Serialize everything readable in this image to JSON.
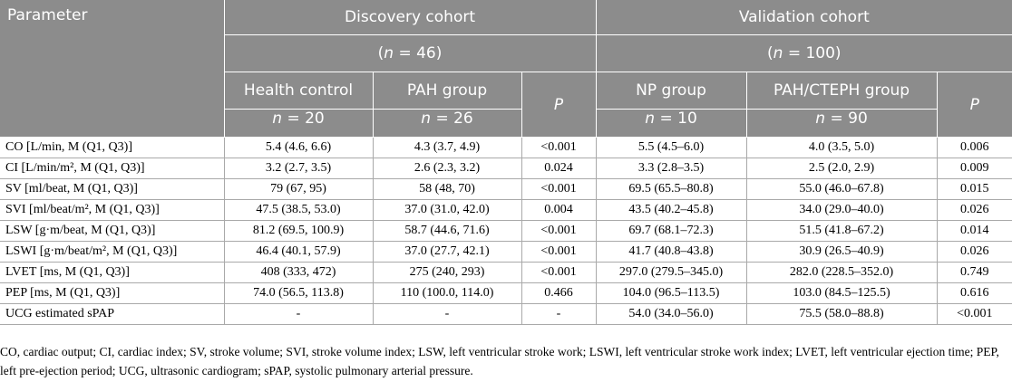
{
  "header": {
    "parameter": "Parameter",
    "discovery": "Discovery cohort",
    "discovery_n": "(n = 46)",
    "validation": "Validation cohort",
    "validation_n": "(n = 100)",
    "health_control": "Health control",
    "pah_group": "PAH group",
    "p": "P",
    "np_group": "NP group",
    "pah_cteph_group": "PAH/CTEPH group",
    "hc_n": "n = 20",
    "pah_n": "n = 26",
    "np_n": "n = 10",
    "pahcteph_n": "n = 90"
  },
  "rows": [
    {
      "param": "CO [L/min, M (Q1, Q3)]",
      "hc": "5.4 (4.6, 6.6)",
      "pah": "4.3 (3.7, 4.9)",
      "p1": "<0.001",
      "np": "5.5 (4.5–6.0)",
      "pahcteph": "4.0 (3.5, 5.0)",
      "p2": "0.006"
    },
    {
      "param": "CI [L/min/m², M (Q1, Q3)]",
      "hc": "3.2 (2.7, 3.5)",
      "pah": "2.6 (2.3, 3.2)",
      "p1": "0.024",
      "np": "3.3 (2.8–3.5)",
      "pahcteph": "2.5 (2.0, 2.9)",
      "p2": "0.009"
    },
    {
      "param": "SV [ml/beat, M (Q1, Q3)]",
      "hc": "79 (67, 95)",
      "pah": "58 (48, 70)",
      "p1": "<0.001",
      "np": "69.5 (65.5–80.8)",
      "pahcteph": "55.0 (46.0–67.8)",
      "p2": "0.015"
    },
    {
      "param": "SVI [ml/beat/m², M (Q1, Q3)]",
      "hc": "47.5 (38.5, 53.0)",
      "pah": "37.0 (31.0, 42.0)",
      "p1": "0.004",
      "np": "43.5 (40.2–45.8)",
      "pahcteph": "34.0 (29.0–40.0)",
      "p2": "0.026"
    },
    {
      "param": "LSW [g·m/beat, M (Q1, Q3)]",
      "hc": "81.2 (69.5, 100.9)",
      "pah": "58.7 (44.6, 71.6)",
      "p1": "<0.001",
      "np": "69.7 (68.1–72.3)",
      "pahcteph": "51.5 (41.8–67.2)",
      "p2": "0.014"
    },
    {
      "param": "LSWI [g·m/beat/m², M (Q1, Q3)]",
      "hc": "46.4 (40.1, 57.9)",
      "pah": "37.0 (27.7, 42.1)",
      "p1": "<0.001",
      "np": "41.7 (40.8–43.8)",
      "pahcteph": "30.9 (26.5–40.9)",
      "p2": "0.026"
    },
    {
      "param": "LVET [ms, M (Q1, Q3)]",
      "hc": "408 (333, 472)",
      "pah": "275 (240, 293)",
      "p1": "<0.001",
      "np": "297.0 (279.5–345.0)",
      "pahcteph": "282.0 (228.5–352.0)",
      "p2": "0.749"
    },
    {
      "param": "PEP [ms, M (Q1, Q3)]",
      "hc": "74.0 (56.5, 113.8)",
      "pah": "110 (100.0, 114.0)",
      "p1": "0.466",
      "np": "104.0 (96.5–113.5)",
      "pahcteph": "103.0 (84.5–125.5)",
      "p2": "0.616"
    },
    {
      "param": "UCG estimated sPAP",
      "hc": "-",
      "pah": "-",
      "p1": "-",
      "np": "54.0 (34.0–56.0)",
      "pahcteph": "75.5 (58.0–88.8)",
      "p2": "<0.001"
    }
  ],
  "footnote": "CO, cardiac output; CI, cardiac index; SV, stroke volume; SVI, stroke volume index; LSW, left ventricular stroke work; LSWI, left ventricular stroke work index; LVET, left ventricular ejection time; PEP, left pre-ejection period; UCG, ultrasonic cardiogram; sPAP, systolic pulmonary arterial pressure."
}
